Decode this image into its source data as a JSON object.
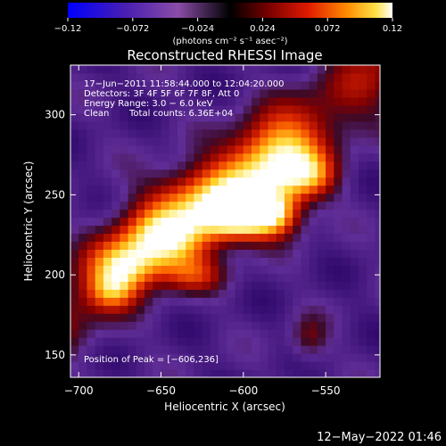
{
  "chart_data": {
    "type": "heatmap",
    "title": "Reconstructed RHESSI Image",
    "xlabel": "Heliocentric X (arcsec)",
    "ylabel": "Heliocentric Y (arcsec)",
    "xlim": [
      -705,
      -517
    ],
    "ylim": [
      136,
      331
    ],
    "x_ticks": [
      -700,
      -650,
      -600,
      -550
    ],
    "x_tick_labels": [
      "−700",
      "−650",
      "−600",
      "−550"
    ],
    "y_ticks": [
      150,
      200,
      250,
      300
    ],
    "y_tick_labels": [
      "150",
      "200",
      "250",
      "300"
    ],
    "colorbar": {
      "range": [
        -0.12,
        0.12
      ],
      "ticks": [
        -0.12,
        -0.072,
        -0.024,
        0.024,
        0.072,
        0.12
      ],
      "tick_labels": [
        "−0.12",
        "−0.072",
        "−0.024",
        "0.024",
        "0.072",
        "0.12"
      ],
      "unit_label": "(photons cm⁻² s⁻¹ asec⁻²)",
      "colors": [
        "#0000ff",
        "#5b1f9a",
        "#8a4da8",
        "#000000",
        "#7a0000",
        "#e01a00",
        "#ff8c00",
        "#ffe34a",
        "#ffffff"
      ]
    },
    "annotations": {
      "time": "17−Jun−2011 11:58:44.000 to 12:04:20.000",
      "detectors": "Detectors: 3F 4F 5F 6F 7F 8F, Att 0",
      "energy": "Energy Range: 3.0 − 6.0 keV",
      "method": "Clean",
      "counts": "Total counts: 6.36E+04",
      "peak": "Position of Peak = [−606,236]"
    },
    "peak": {
      "x": -606,
      "y": 236
    },
    "grid": false
  },
  "footer": {
    "timestamp": "12−May−2022 01:46"
  }
}
